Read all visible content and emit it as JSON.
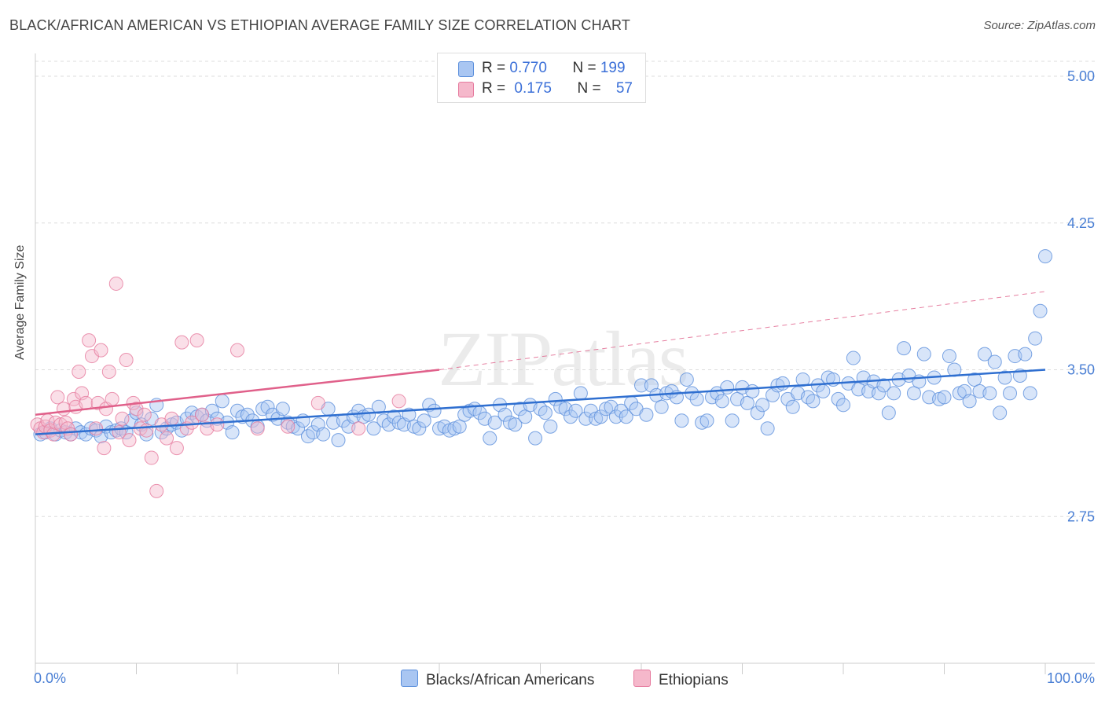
{
  "header": {
    "title": "BLACK/AFRICAN AMERICAN VS ETHIOPIAN AVERAGE FAMILY SIZE CORRELATION CHART",
    "source": "Source: ZipAtlas.com"
  },
  "legend": {
    "rows": [
      {
        "r_label": "R = ",
        "r_value": "0.770",
        "n_label": "N = ",
        "n_value": "199"
      },
      {
        "r_label": "R = ",
        "r_value": "0.175",
        "n_label": "N = ",
        "n_value": "57"
      }
    ],
    "bottom": [
      "Blacks/African Americans",
      "Ethiopians"
    ]
  },
  "colors": {
    "blue_fill": "#a9c6f2",
    "blue_stroke": "#5b8fdc",
    "blue_line": "#2f6fd0",
    "pink_fill": "#f5b8cb",
    "pink_stroke": "#e67a9e",
    "pink_line": "#e0608a",
    "tick_text": "#4a7fd4",
    "grid": "#dddddd"
  },
  "chart_data": {
    "type": "scatter",
    "title": "BLACK/AFRICAN AMERICAN VS ETHIOPIAN AVERAGE FAMILY SIZE CORRELATION CHART",
    "xlabel": "",
    "ylabel": "Average Family Size",
    "xlim": [
      0,
      100
    ],
    "ylim": [
      2.0,
      5.0
    ],
    "x_tick_labels": [
      "0.0%",
      "100.0%"
    ],
    "y_ticks": [
      2.75,
      3.5,
      4.25,
      5.0
    ],
    "y_tick_labels": [
      "2.75",
      "3.50",
      "4.25",
      "5.00"
    ],
    "grid": true,
    "watermark": "ZIPatlas",
    "series": [
      {
        "name": "Blacks/African Americans",
        "r": 0.77,
        "n": 199,
        "trend": {
          "x": [
            0,
            100
          ],
          "y": [
            3.17,
            3.5
          ]
        },
        "points": [
          [
            0.5,
            3.17
          ],
          [
            1,
            3.18
          ],
          [
            1.5,
            3.2
          ],
          [
            2,
            3.17
          ],
          [
            2.5,
            3.19
          ],
          [
            3,
            3.18
          ],
          [
            3.5,
            3.17
          ],
          [
            4,
            3.2
          ],
          [
            4.5,
            3.18
          ],
          [
            5,
            3.17
          ],
          [
            5.5,
            3.2
          ],
          [
            6,
            3.19
          ],
          [
            6.5,
            3.16
          ],
          [
            7,
            3.21
          ],
          [
            7.5,
            3.18
          ],
          [
            8,
            3.19
          ],
          [
            8.5,
            3.2
          ],
          [
            9,
            3.18
          ],
          [
            9.5,
            3.24
          ],
          [
            10,
            3.28
          ],
          [
            10.5,
            3.22
          ],
          [
            11,
            3.17
          ],
          [
            11.5,
            3.25
          ],
          [
            12,
            3.32
          ],
          [
            12.5,
            3.18
          ],
          [
            13,
            3.2
          ],
          [
            13.5,
            3.22
          ],
          [
            14,
            3.23
          ],
          [
            14.5,
            3.19
          ],
          [
            15,
            3.25
          ],
          [
            15.5,
            3.28
          ],
          [
            16,
            3.26
          ],
          [
            16.5,
            3.27
          ],
          [
            17,
            3.24
          ],
          [
            17.5,
            3.29
          ],
          [
            18,
            3.25
          ],
          [
            18.5,
            3.34
          ],
          [
            19,
            3.23
          ],
          [
            19.5,
            3.18
          ],
          [
            20,
            3.29
          ],
          [
            20.5,
            3.26
          ],
          [
            21,
            3.27
          ],
          [
            21.5,
            3.24
          ],
          [
            22,
            3.21
          ],
          [
            22.5,
            3.3
          ],
          [
            23,
            3.31
          ],
          [
            23.5,
            3.27
          ],
          [
            24,
            3.25
          ],
          [
            24.5,
            3.3
          ],
          [
            25,
            3.23
          ],
          [
            25.5,
            3.21
          ],
          [
            26,
            3.2
          ],
          [
            26.5,
            3.24
          ],
          [
            27,
            3.16
          ],
          [
            27.5,
            3.18
          ],
          [
            28,
            3.22
          ],
          [
            28.5,
            3.17
          ],
          [
            29,
            3.3
          ],
          [
            29.5,
            3.23
          ],
          [
            30,
            3.14
          ],
          [
            30.5,
            3.24
          ],
          [
            31,
            3.21
          ],
          [
            31.5,
            3.26
          ],
          [
            32,
            3.29
          ],
          [
            32.5,
            3.26
          ],
          [
            33,
            3.27
          ],
          [
            33.5,
            3.2
          ],
          [
            34,
            3.31
          ],
          [
            34.5,
            3.24
          ],
          [
            35,
            3.22
          ],
          [
            35.5,
            3.26
          ],
          [
            36,
            3.23
          ],
          [
            36.5,
            3.22
          ],
          [
            37,
            3.27
          ],
          [
            37.5,
            3.21
          ],
          [
            38,
            3.2
          ],
          [
            38.5,
            3.24
          ],
          [
            39,
            3.32
          ],
          [
            39.5,
            3.29
          ],
          [
            40,
            3.2
          ],
          [
            40.5,
            3.21
          ],
          [
            41,
            3.19
          ],
          [
            41.5,
            3.2
          ],
          [
            42,
            3.21
          ],
          [
            42.5,
            3.27
          ],
          [
            43,
            3.29
          ],
          [
            43.5,
            3.3
          ],
          [
            44,
            3.28
          ],
          [
            44.5,
            3.25
          ],
          [
            45,
            3.15
          ],
          [
            45.5,
            3.23
          ],
          [
            46,
            3.32
          ],
          [
            46.5,
            3.27
          ],
          [
            47,
            3.23
          ],
          [
            47.5,
            3.22
          ],
          [
            48,
            3.3
          ],
          [
            48.5,
            3.26
          ],
          [
            49,
            3.32
          ],
          [
            49.5,
            3.15
          ],
          [
            50,
            3.3
          ],
          [
            50.5,
            3.28
          ],
          [
            51,
            3.21
          ],
          [
            51.5,
            3.35
          ],
          [
            52,
            3.31
          ],
          [
            52.5,
            3.3
          ],
          [
            53,
            3.26
          ],
          [
            53.5,
            3.29
          ],
          [
            54,
            3.38
          ],
          [
            54.5,
            3.25
          ],
          [
            55,
            3.29
          ],
          [
            55.5,
            3.25
          ],
          [
            56,
            3.26
          ],
          [
            56.5,
            3.3
          ],
          [
            57,
            3.31
          ],
          [
            57.5,
            3.26
          ],
          [
            58,
            3.29
          ],
          [
            58.5,
            3.26
          ],
          [
            59,
            3.33
          ],
          [
            59.5,
            3.3
          ],
          [
            60,
            3.42
          ],
          [
            60.5,
            3.27
          ],
          [
            61,
            3.42
          ],
          [
            61.5,
            3.37
          ],
          [
            62,
            3.31
          ],
          [
            62.5,
            3.38
          ],
          [
            63,
            3.39
          ],
          [
            63.5,
            3.36
          ],
          [
            64,
            3.24
          ],
          [
            64.5,
            3.45
          ],
          [
            65,
            3.38
          ],
          [
            65.5,
            3.35
          ],
          [
            66,
            3.23
          ],
          [
            66.5,
            3.24
          ],
          [
            67,
            3.36
          ],
          [
            67.5,
            3.38
          ],
          [
            68,
            3.34
          ],
          [
            68.5,
            3.41
          ],
          [
            69,
            3.24
          ],
          [
            69.5,
            3.35
          ],
          [
            70,
            3.41
          ],
          [
            70.5,
            3.33
          ],
          [
            71,
            3.39
          ],
          [
            71.5,
            3.28
          ],
          [
            72,
            3.32
          ],
          [
            72.5,
            3.2
          ],
          [
            73,
            3.37
          ],
          [
            73.5,
            3.42
          ],
          [
            74,
            3.43
          ],
          [
            74.5,
            3.35
          ],
          [
            75,
            3.31
          ],
          [
            75.5,
            3.38
          ],
          [
            76,
            3.45
          ],
          [
            76.5,
            3.36
          ],
          [
            77,
            3.34
          ],
          [
            77.5,
            3.42
          ],
          [
            78,
            3.39
          ],
          [
            78.5,
            3.46
          ],
          [
            79,
            3.45
          ],
          [
            79.5,
            3.35
          ],
          [
            80,
            3.32
          ],
          [
            80.5,
            3.43
          ],
          [
            81,
            3.56
          ],
          [
            81.5,
            3.4
          ],
          [
            82,
            3.46
          ],
          [
            82.5,
            3.39
          ],
          [
            83,
            3.44
          ],
          [
            83.5,
            3.38
          ],
          [
            84,
            3.42
          ],
          [
            84.5,
            3.28
          ],
          [
            85,
            3.38
          ],
          [
            85.5,
            3.45
          ],
          [
            86,
            3.61
          ],
          [
            86.5,
            3.47
          ],
          [
            87,
            3.38
          ],
          [
            87.5,
            3.44
          ],
          [
            88,
            3.58
          ],
          [
            88.5,
            3.36
          ],
          [
            89,
            3.46
          ],
          [
            89.5,
            3.35
          ],
          [
            90,
            3.36
          ],
          [
            90.5,
            3.57
          ],
          [
            91,
            3.5
          ],
          [
            91.5,
            3.38
          ],
          [
            92,
            3.39
          ],
          [
            92.5,
            3.34
          ],
          [
            93,
            3.45
          ],
          [
            93.5,
            3.39
          ],
          [
            94,
            3.58
          ],
          [
            94.5,
            3.38
          ],
          [
            95,
            3.54
          ],
          [
            95.5,
            3.28
          ],
          [
            96,
            3.46
          ],
          [
            96.5,
            3.38
          ],
          [
            97,
            3.57
          ],
          [
            97.5,
            3.47
          ],
          [
            98,
            3.58
          ],
          [
            98.5,
            3.38
          ],
          [
            99,
            3.66
          ],
          [
            99.5,
            3.8
          ],
          [
            100,
            4.08
          ]
        ]
      },
      {
        "name": "Ethiopians",
        "r": 0.175,
        "n": 57,
        "trend": {
          "x": [
            0,
            40
          ],
          "y": [
            3.27,
            3.5
          ]
        },
        "trend_extension": {
          "x": [
            40,
            100
          ],
          "y": [
            3.5,
            3.9
          ]
        },
        "points": [
          [
            0.2,
            3.22
          ],
          [
            0.5,
            3.2
          ],
          [
            0.8,
            3.18
          ],
          [
            1,
            3.21
          ],
          [
            1.2,
            3.24
          ],
          [
            1.5,
            3.19
          ],
          [
            1.8,
            3.17
          ],
          [
            2,
            3.23
          ],
          [
            2.2,
            3.36
          ],
          [
            2.5,
            3.22
          ],
          [
            2.8,
            3.3
          ],
          [
            3,
            3.23
          ],
          [
            3.2,
            3.2
          ],
          [
            3.5,
            3.17
          ],
          [
            3.8,
            3.35
          ],
          [
            4,
            3.31
          ],
          [
            4.3,
            3.49
          ],
          [
            4.6,
            3.38
          ],
          [
            5,
            3.33
          ],
          [
            5.3,
            3.65
          ],
          [
            5.6,
            3.57
          ],
          [
            6,
            3.2
          ],
          [
            6.2,
            3.33
          ],
          [
            6.5,
            3.6
          ],
          [
            6.8,
            3.1
          ],
          [
            7,
            3.3
          ],
          [
            7.3,
            3.49
          ],
          [
            7.6,
            3.35
          ],
          [
            8,
            3.94
          ],
          [
            8.3,
            3.18
          ],
          [
            8.6,
            3.25
          ],
          [
            9,
            3.55
          ],
          [
            9.3,
            3.14
          ],
          [
            9.7,
            3.33
          ],
          [
            10,
            3.3
          ],
          [
            10.4,
            3.2
          ],
          [
            10.8,
            3.27
          ],
          [
            11,
            3.19
          ],
          [
            11.5,
            3.05
          ],
          [
            12,
            2.88
          ],
          [
            12.5,
            3.22
          ],
          [
            13,
            3.15
          ],
          [
            13.5,
            3.25
          ],
          [
            14,
            3.1
          ],
          [
            14.5,
            3.64
          ],
          [
            15,
            3.2
          ],
          [
            15.5,
            3.23
          ],
          [
            16,
            3.65
          ],
          [
            16.5,
            3.27
          ],
          [
            17,
            3.2
          ],
          [
            18,
            3.22
          ],
          [
            20,
            3.6
          ],
          [
            22,
            3.2
          ],
          [
            25,
            3.21
          ],
          [
            28,
            3.33
          ],
          [
            32,
            3.2
          ],
          [
            36,
            3.34
          ]
        ]
      }
    ]
  }
}
